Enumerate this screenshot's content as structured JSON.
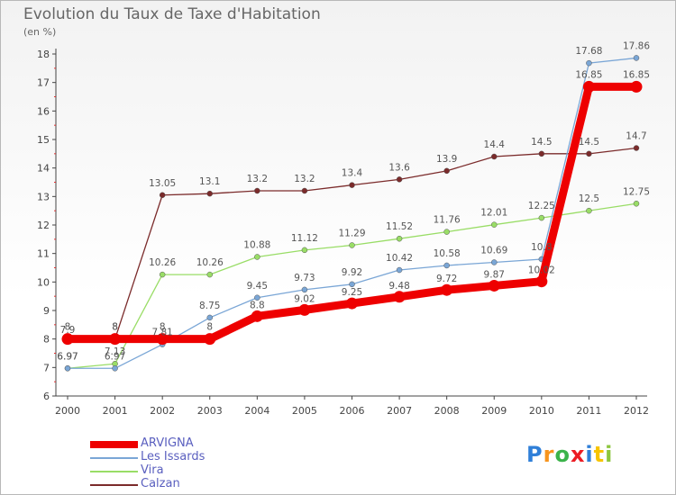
{
  "header": {
    "title": "Evolution du Taux de Taxe d'Habitation",
    "subtitle": "(en %)"
  },
  "logo": {
    "letters": [
      "P",
      "r",
      "o",
      "x",
      "i",
      "t",
      "i"
    ],
    "colors": [
      "#2f7fd8",
      "#f7941d",
      "#3bb34a",
      "#ec1c24",
      "#2f7fd8",
      "#f7c400",
      "#8dc63f"
    ]
  },
  "chart_data": {
    "type": "line",
    "title": "Evolution du Taux de Taxe d'Habitation",
    "ylabel": "(en %)",
    "xlabel": "",
    "x": [
      "2000",
      "2001",
      "2002",
      "2003",
      "2004",
      "2005",
      "2006",
      "2007",
      "2008",
      "2009",
      "2010",
      "2011",
      "2012"
    ],
    "ylim": [
      6,
      18
    ],
    "yticks": [
      "6",
      "7",
      "8",
      "9",
      "10",
      "11",
      "12",
      "13",
      "14",
      "15",
      "16",
      "17",
      "18"
    ],
    "grid": false,
    "legend": "bottom-left",
    "series": [
      {
        "name": "ARVIGNA",
        "color": "#ee0000",
        "values": [
          8,
          8,
          8,
          8,
          8.8,
          9.02,
          9.25,
          9.48,
          9.72,
          9.87,
          10.02,
          16.85,
          16.85
        ],
        "labels": [
          "8",
          "8",
          "8",
          "8",
          "8.8",
          "9.02",
          "9.25",
          "9.48",
          "9.72",
          "9.87",
          "10.02",
          "16.85",
          "16.85"
        ]
      },
      {
        "name": "Les Issards",
        "color": "#7aa6d6",
        "values": [
          6.97,
          6.97,
          7.81,
          8.75,
          9.45,
          9.73,
          9.92,
          10.42,
          10.58,
          10.69,
          10.8,
          17.68,
          17.86
        ],
        "labels": [
          "6.97",
          "6.97",
          "7.81",
          "8.75",
          "9.45",
          "9.73",
          "9.92",
          "10.42",
          "10.58",
          "10.69",
          "10.8",
          "17.68",
          "17.86"
        ]
      },
      {
        "name": "Vira",
        "color": "#99dd66",
        "values": [
          6.97,
          7.13,
          10.26,
          10.26,
          10.88,
          11.12,
          11.29,
          11.52,
          11.76,
          12.01,
          12.25,
          12.5,
          12.75
        ],
        "labels": [
          "6.97",
          "7.13",
          "10.26",
          "10.26",
          "10.88",
          "11.12",
          "11.29",
          "11.52",
          "11.76",
          "12.01",
          "12.25",
          "12.5",
          "12.75"
        ]
      },
      {
        "name": "Calzan",
        "color": "#7b2b2b",
        "values": [
          7.9,
          8,
          13.05,
          13.1,
          13.2,
          13.2,
          13.4,
          13.6,
          13.9,
          14.4,
          14.5,
          14.5,
          14.7
        ],
        "labels": [
          "7.9",
          "8",
          "13.05",
          "13.1",
          "13.2",
          "13.2",
          "13.4",
          "13.6",
          "13.9",
          "14.4",
          "14.5",
          "14.5",
          "14.7"
        ]
      }
    ]
  }
}
